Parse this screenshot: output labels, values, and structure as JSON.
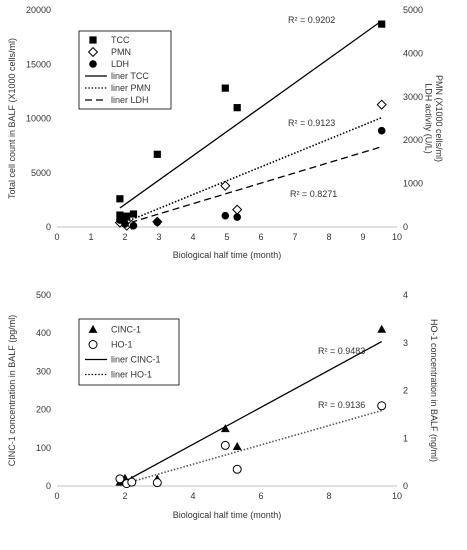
{
  "chart_data": [
    {
      "type": "scatter",
      "xlabel": "Biological half time (month)",
      "ylabel_left": "Total cell count in BALF (X1000 cells/ml)",
      "ylabel_right": "PMN (X1000 cells/ml)\nLDH activity (U/L)",
      "xlim": [
        0,
        10
      ],
      "ylim_left": [
        0,
        20000
      ],
      "ylim_right": [
        0,
        5000
      ],
      "x_ticks": [
        0,
        1,
        2,
        3,
        4,
        5,
        6,
        7,
        8,
        9,
        10
      ],
      "y_ticks_left": [
        0,
        5000,
        10000,
        15000,
        20000
      ],
      "y_ticks_right": [
        0,
        1000,
        2000,
        3000,
        4000,
        5000
      ],
      "grid": false,
      "legend_position": "top-left",
      "series": [
        {
          "name": "TCC",
          "marker": "square",
          "axis": "left",
          "points": [
            [
              1.85,
              2600
            ],
            [
              1.85,
              1100
            ],
            [
              1.9,
              700
            ],
            [
              2.0,
              900
            ],
            [
              2.05,
              1000
            ],
            [
              2.25,
              1200
            ],
            [
              2.95,
              6700
            ],
            [
              4.95,
              12800
            ],
            [
              5.3,
              11000
            ],
            [
              9.55,
              18700
            ]
          ]
        },
        {
          "name": "PMN",
          "marker": "diamond-open",
          "axis": "right",
          "points": [
            [
              1.85,
              100
            ],
            [
              2.05,
              30
            ],
            [
              2.2,
              50
            ],
            [
              2.95,
              120
            ],
            [
              4.95,
              950
            ],
            [
              5.3,
              400
            ],
            [
              9.55,
              2820
            ]
          ]
        },
        {
          "name": "LDH",
          "marker": "circle",
          "axis": "right",
          "points": [
            [
              1.85,
              160
            ],
            [
              2.0,
              70
            ],
            [
              2.25,
              30
            ],
            [
              2.95,
              110
            ],
            [
              4.95,
              260
            ],
            [
              5.3,
              230
            ],
            [
              9.55,
              2220
            ]
          ]
        }
      ],
      "trendlines": [
        {
          "name": "liner TCC",
          "style": "solid",
          "axis": "left",
          "x": [
            1.85,
            9.55
          ],
          "y": [
            1750,
            19000
          ],
          "r2_label": "R² = 0.9202"
        },
        {
          "name": "liner PMN",
          "style": "dotted",
          "axis": "right",
          "x": [
            1.85,
            9.55
          ],
          "y": [
            60,
            2520
          ],
          "r2_label": "R² = 0.9123"
        },
        {
          "name": "liner LDH",
          "style": "dashed",
          "axis": "right",
          "x": [
            1.85,
            9.55
          ],
          "y": [
            30,
            1850
          ],
          "r2_label": "R² = 0.8271"
        }
      ]
    },
    {
      "type": "scatter",
      "xlabel": "Biological half time (month)",
      "ylabel_left": "CINC-1 concentration in BALF (pg/ml)",
      "ylabel_right": "HO-1 concentration in BALF (ng/ml)",
      "xlim": [
        0,
        10
      ],
      "ylim_left": [
        0,
        500
      ],
      "ylim_right": [
        0,
        4
      ],
      "x_ticks": [
        0,
        2,
        4,
        6,
        8,
        10
      ],
      "y_ticks_left": [
        0,
        100,
        200,
        300,
        400,
        500
      ],
      "y_ticks_right": [
        0,
        1,
        2,
        3,
        4
      ],
      "grid": false,
      "legend_position": "top-left",
      "series": [
        {
          "name": "CINC-1",
          "marker": "triangle",
          "axis": "left",
          "points": [
            [
              1.85,
              10
            ],
            [
              2.0,
              20
            ],
            [
              2.2,
              15
            ],
            [
              2.95,
              18
            ],
            [
              4.95,
              150
            ],
            [
              5.3,
              103
            ],
            [
              9.55,
              410
            ]
          ]
        },
        {
          "name": "HO-1",
          "marker": "circle-open",
          "axis": "right",
          "points": [
            [
              1.85,
              0.15
            ],
            [
              2.05,
              0.05
            ],
            [
              2.2,
              0.08
            ],
            [
              2.95,
              0.07
            ],
            [
              4.95,
              0.85
            ],
            [
              5.3,
              0.35
            ],
            [
              9.55,
              1.68
            ]
          ]
        }
      ],
      "trendlines": [
        {
          "name": "liner CINC-1",
          "style": "solid",
          "axis": "left",
          "x": [
            1.85,
            9.55
          ],
          "y": [
            5,
            378
          ],
          "r2_label": "R² = 0.9483"
        },
        {
          "name": "liner HO-1",
          "style": "dotted",
          "axis": "right",
          "x": [
            1.85,
            9.55
          ],
          "y": [
            0.02,
            1.58
          ],
          "r2_label": "R² = 0.9136"
        }
      ]
    }
  ]
}
